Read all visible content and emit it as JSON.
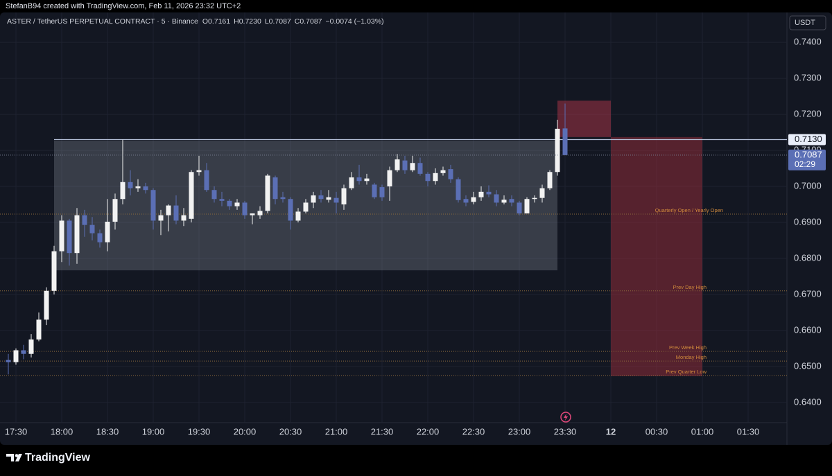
{
  "header": {
    "credit": "StefanB94 created with TradingView.com, Feb 11, 2026 23:32 UTC+2"
  },
  "footer": {
    "brand": "TradingView"
  },
  "chart_data": {
    "type": "candlestick",
    "title": "ASTER / TetherUS PERPETUAL CONTRACT · 5 · Binance",
    "ohlc_legend": [
      {
        "key": "O",
        "value": "0.7161"
      },
      {
        "key": "H",
        "value": "0.7230"
      },
      {
        "key": "L",
        "value": "0.7087"
      },
      {
        "key": "C",
        "value": "0.7087"
      }
    ],
    "change": "−0.0074 (−1.03%)",
    "currency": "USDT",
    "x": [
      "17:25",
      "17:30",
      "17:35",
      "17:40",
      "17:45",
      "17:50",
      "17:55",
      "18:00",
      "18:05",
      "18:10",
      "18:15",
      "18:20",
      "18:25",
      "18:30",
      "18:35",
      "18:40",
      "18:45",
      "18:50",
      "18:55",
      "19:00",
      "19:05",
      "19:10",
      "19:15",
      "19:20",
      "19:25",
      "19:30",
      "19:35",
      "19:40",
      "19:45",
      "19:50",
      "19:55",
      "20:00",
      "20:05",
      "20:10",
      "20:15",
      "20:20",
      "20:25",
      "20:30",
      "20:35",
      "20:40",
      "20:45",
      "20:50",
      "20:55",
      "21:00",
      "21:05",
      "21:10",
      "21:15",
      "21:20",
      "21:25",
      "21:30",
      "21:35",
      "21:40",
      "21:45",
      "21:50",
      "21:55",
      "22:00",
      "22:05",
      "22:10",
      "22:15",
      "22:20",
      "22:25",
      "22:30",
      "22:35",
      "22:40",
      "22:45",
      "22:50",
      "22:55",
      "23:00",
      "23:05",
      "23:10",
      "23:15",
      "23:20",
      "23:25",
      "23:30"
    ],
    "open": [
      0.6518,
      0.6512,
      0.6545,
      0.6535,
      0.6575,
      0.663,
      0.671,
      0.682,
      0.6905,
      0.6815,
      0.692,
      0.6893,
      0.687,
      0.6845,
      0.6902,
      0.6965,
      0.7012,
      0.6995,
      0.7,
      0.699,
      0.6905,
      0.692,
      0.6947,
      0.6905,
      0.691,
      0.704,
      0.7045,
      0.699,
      0.6965,
      0.696,
      0.6945,
      0.6955,
      0.692,
      0.692,
      0.6932,
      0.7025,
      0.697,
      0.6965,
      0.6905,
      0.693,
      0.6955,
      0.6975,
      0.6963,
      0.6968,
      0.695,
      0.6995,
      0.7025,
      0.7015,
      0.7005,
      0.6998,
      0.7,
      0.7045,
      0.7072,
      0.7045,
      0.7065,
      0.7035,
      0.7015,
      0.7037,
      0.7048,
      0.702,
      0.6965,
      0.6957,
      0.697,
      0.6985,
      0.6978,
      0.6955,
      0.6965,
      0.6955,
      0.6925,
      0.6965,
      0.6968,
      0.6995,
      0.704,
      0.7161
    ],
    "high": [
      0.6535,
      0.655,
      0.656,
      0.659,
      0.665,
      0.672,
      0.6835,
      0.692,
      0.691,
      0.694,
      0.6935,
      0.6915,
      0.688,
      0.6965,
      0.698,
      0.713,
      0.7045,
      0.702,
      0.701,
      0.6995,
      0.6935,
      0.695,
      0.6975,
      0.694,
      0.7045,
      0.7085,
      0.7065,
      0.7,
      0.6985,
      0.6965,
      0.6965,
      0.696,
      0.6925,
      0.6945,
      0.7035,
      0.703,
      0.6985,
      0.697,
      0.694,
      0.6965,
      0.6985,
      0.699,
      0.699,
      0.6985,
      0.7005,
      0.704,
      0.706,
      0.7035,
      0.701,
      0.7005,
      0.7055,
      0.709,
      0.7085,
      0.7085,
      0.708,
      0.704,
      0.705,
      0.7055,
      0.706,
      0.7025,
      0.6975,
      0.6985,
      0.7,
      0.7003,
      0.699,
      0.6975,
      0.6975,
      0.696,
      0.697,
      0.6975,
      0.7005,
      0.7045,
      0.7185,
      0.723
    ],
    "low": [
      0.6478,
      0.6505,
      0.652,
      0.6525,
      0.657,
      0.6615,
      0.67,
      0.679,
      0.678,
      0.6785,
      0.686,
      0.685,
      0.683,
      0.682,
      0.688,
      0.695,
      0.6975,
      0.6985,
      0.698,
      0.688,
      0.6865,
      0.6875,
      0.6895,
      0.689,
      0.69,
      0.703,
      0.6985,
      0.6955,
      0.6945,
      0.6935,
      0.6935,
      0.691,
      0.6895,
      0.691,
      0.6925,
      0.695,
      0.6955,
      0.688,
      0.69,
      0.6925,
      0.694,
      0.6955,
      0.6955,
      0.6925,
      0.6935,
      0.699,
      0.7005,
      0.7005,
      0.6965,
      0.696,
      0.696,
      0.704,
      0.7035,
      0.704,
      0.703,
      0.7,
      0.7005,
      0.703,
      0.701,
      0.6955,
      0.6945,
      0.695,
      0.696,
      0.697,
      0.6945,
      0.695,
      0.6945,
      0.692,
      0.6925,
      0.6955,
      0.6955,
      0.699,
      0.703,
      0.7087
    ],
    "close": [
      0.6512,
      0.6545,
      0.6535,
      0.6575,
      0.663,
      0.671,
      0.682,
      0.6905,
      0.6815,
      0.692,
      0.6893,
      0.687,
      0.6845,
      0.6902,
      0.6965,
      0.7012,
      0.6995,
      0.7,
      0.699,
      0.6905,
      0.692,
      0.6947,
      0.6905,
      0.692,
      0.704,
      0.7045,
      0.699,
      0.6965,
      0.696,
      0.6945,
      0.6955,
      0.692,
      0.6925,
      0.6932,
      0.703,
      0.6965,
      0.6965,
      0.6905,
      0.693,
      0.6955,
      0.6975,
      0.6965,
      0.697,
      0.6955,
      0.6995,
      0.7025,
      0.7015,
      0.7022,
      0.697,
      0.697,
      0.7045,
      0.7075,
      0.7045,
      0.7065,
      0.7035,
      0.7015,
      0.7037,
      0.7045,
      0.702,
      0.6962,
      0.6955,
      0.697,
      0.6985,
      0.6978,
      0.6955,
      0.6963,
      0.6955,
      0.6925,
      0.6965,
      0.6968,
      0.6995,
      0.704,
      0.716,
      0.7087
    ],
    "up_color": "#f2f2f2",
    "down_color": "#5b6fb5",
    "xlim": [
      "17:20",
      "01:55"
    ],
    "xticks": [
      "17:30",
      "18:00",
      "18:30",
      "19:00",
      "19:30",
      "20:00",
      "20:30",
      "21:00",
      "21:30",
      "22:00",
      "22:30",
      "23:00",
      "23:30",
      {
        "value": "00:00",
        "label": "12"
      },
      "00:30",
      "01:00",
      "01:30"
    ],
    "ylim": [
      0.6344,
      0.7483
    ],
    "yticks": [
      {
        "value": 0.64,
        "label": "0.6400"
      },
      {
        "value": 0.65,
        "label": "0.6500"
      },
      {
        "value": 0.66,
        "label": "0.6600"
      },
      {
        "value": 0.67,
        "label": "0.6700"
      },
      {
        "value": 0.68,
        "label": "0.6800"
      },
      {
        "value": 0.69,
        "label": "0.6900"
      },
      {
        "value": 0.7,
        "label": "0.7000"
      },
      {
        "value": 0.71,
        "label": "0.7100"
      },
      {
        "value": 0.72,
        "label": "0.7200"
      },
      {
        "value": 0.73,
        "label": "0.7300"
      },
      {
        "value": 0.74,
        "label": "0.7400"
      }
    ],
    "grid": true,
    "boxes": [
      {
        "start": "17:55",
        "end": "23:25",
        "top": 0.7127,
        "bottom": 0.6767,
        "color": "#9aa0ad"
      },
      {
        "start": "23:25",
        "end": "00:00",
        "top": 0.7238,
        "bottom": 0.7137,
        "color": "#c23a4e"
      },
      {
        "start": "00:00",
        "end": "01:00",
        "top": 0.7137,
        "bottom": 0.6473,
        "color": "#a8303f"
      }
    ],
    "price_line": {
      "start": "17:55",
      "price": {
        "value": 0.713,
        "label": "0.7130"
      }
    },
    "levels": [
      {
        "name": "Quarterly Open / Yearly Open",
        "price": 0.6923
      },
      {
        "name": "Prev Day High",
        "price": 0.671
      },
      {
        "name": "Prev Week High",
        "price": 0.6542
      },
      {
        "name": "Monday High",
        "price": 0.6515
      },
      {
        "name": "Prev Quarter Low",
        "price": 0.6475
      }
    ],
    "last_price": {
      "value": 0.7087,
      "label": "0.7087"
    },
    "countdown": "02:29"
  }
}
